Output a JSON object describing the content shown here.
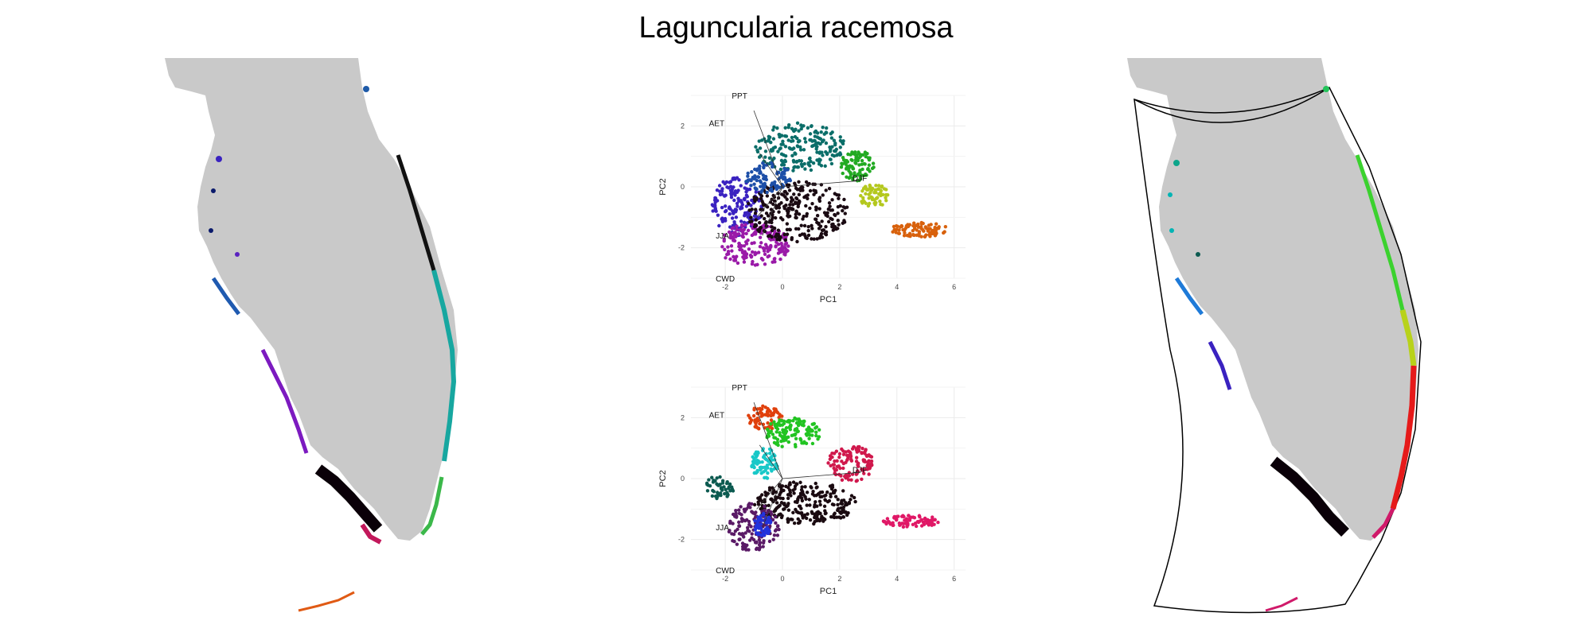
{
  "title": "Laguncularia racemosa",
  "colors": {
    "land": "#c9c9c9",
    "grid": "#ebebeb",
    "outline": "#000000"
  },
  "chart_data": [
    {
      "type": "map",
      "panel": "left-map",
      "description_colors": [
        "#0a1a6b",
        "#1e5aa8",
        "#6a1fc7",
        "#8a1a9a",
        "#000000",
        "#00a3a3",
        "#2fb34a",
        "#e85d10",
        "#c2185b"
      ]
    },
    {
      "type": "scatter",
      "panel": "pca-top",
      "xlabel": "PC1",
      "ylabel": "PC2",
      "x_ticks": [
        -2,
        0,
        2,
        4,
        6
      ],
      "y_ticks": [
        2,
        0,
        -2
      ],
      "xlim": [
        -3.2,
        6.4
      ],
      "ylim": [
        -3.0,
        3.0
      ],
      "grid": true,
      "loadings": [
        {
          "name": "PPT",
          "end": [
            -1.0,
            2.5
          ],
          "label": [
            -1.5,
            2.9
          ]
        },
        {
          "name": "AET",
          "end": [
            -0.8,
            1.1
          ],
          "label": [
            -2.3,
            2.0
          ]
        },
        {
          "name": "DJF",
          "end": [
            2.7,
            0.2
          ],
          "label": [
            2.7,
            0.2
          ]
        },
        {
          "name": "JJA",
          "end": [
            -0.9,
            -1.0
          ],
          "label": [
            -2.1,
            -1.7
          ]
        },
        {
          "name": "CWD",
          "end": [
            -0.7,
            -1.6
          ],
          "label": [
            -2.0,
            -3.1
          ]
        }
      ],
      "groups": [
        {
          "cx": -1.6,
          "cy": -0.6,
          "rx": 0.9,
          "ry": 1.0,
          "color": "#3a22c0",
          "n": 160
        },
        {
          "cx": -1.0,
          "cy": -1.9,
          "rx": 1.3,
          "ry": 0.7,
          "color": "#9a1aa8",
          "n": 190
        },
        {
          "cx": 0.5,
          "cy": -0.8,
          "rx": 1.8,
          "ry": 1.0,
          "color": "#1a0a12",
          "n": 280
        },
        {
          "cx": 0.6,
          "cy": 1.3,
          "rx": 1.6,
          "ry": 0.8,
          "color": "#0b6e69",
          "n": 200
        },
        {
          "cx": -0.5,
          "cy": 0.3,
          "rx": 0.8,
          "ry": 0.5,
          "color": "#1d4fa8",
          "n": 90
        },
        {
          "cx": 2.6,
          "cy": 0.7,
          "rx": 0.6,
          "ry": 0.5,
          "color": "#22aa22",
          "n": 90
        },
        {
          "cx": 3.2,
          "cy": -0.3,
          "rx": 0.5,
          "ry": 0.4,
          "color": "#b4c81e",
          "n": 60
        },
        {
          "cx": 4.8,
          "cy": -1.4,
          "rx": 1.0,
          "ry": 0.25,
          "color": "#d8610c",
          "n": 90
        }
      ]
    },
    {
      "type": "scatter",
      "panel": "pca-bottom",
      "xlabel": "PC1",
      "ylabel": "PC2",
      "x_ticks": [
        -2,
        0,
        2,
        4,
        6
      ],
      "y_ticks": [
        2,
        0,
        -2
      ],
      "xlim": [
        -3.2,
        6.4
      ],
      "ylim": [
        -3.0,
        3.0
      ],
      "grid": true,
      "loadings": [
        {
          "name": "PPT",
          "end": [
            -1.0,
            2.5
          ],
          "label": [
            -1.5,
            2.9
          ]
        },
        {
          "name": "AET",
          "end": [
            -0.8,
            1.1
          ],
          "label": [
            -2.3,
            2.0
          ]
        },
        {
          "name": "DJF",
          "end": [
            2.7,
            0.2
          ],
          "label": [
            2.7,
            0.2
          ]
        },
        {
          "name": "JJA",
          "end": [
            -0.9,
            -1.0
          ],
          "label": [
            -2.1,
            -1.7
          ]
        },
        {
          "name": "CWD",
          "end": [
            -0.7,
            -1.6
          ],
          "label": [
            -2.0,
            -3.1
          ]
        }
      ],
      "groups": [
        {
          "cx": -0.6,
          "cy": 2.0,
          "rx": 0.6,
          "ry": 0.4,
          "color": "#e0400c",
          "n": 70
        },
        {
          "cx": 0.4,
          "cy": 1.5,
          "rx": 1.0,
          "ry": 0.5,
          "color": "#22c422",
          "n": 130
        },
        {
          "cx": -0.6,
          "cy": 0.5,
          "rx": 0.5,
          "ry": 0.5,
          "color": "#18c8c8",
          "n": 80
        },
        {
          "cx": -2.2,
          "cy": -0.3,
          "rx": 0.5,
          "ry": 0.4,
          "color": "#0c5a50",
          "n": 50
        },
        {
          "cx": 0.8,
          "cy": -0.8,
          "rx": 1.8,
          "ry": 0.7,
          "color": "#1a0a10",
          "n": 260
        },
        {
          "cx": -1.0,
          "cy": -1.6,
          "rx": 0.9,
          "ry": 0.8,
          "color": "#5a1a66",
          "n": 150
        },
        {
          "cx": -0.7,
          "cy": -1.5,
          "rx": 0.3,
          "ry": 0.4,
          "color": "#2233dd",
          "n": 50
        },
        {
          "cx": 2.4,
          "cy": 0.5,
          "rx": 0.8,
          "ry": 0.6,
          "color": "#d0184c",
          "n": 120
        },
        {
          "cx": 4.5,
          "cy": -1.4,
          "rx": 1.0,
          "ry": 0.2,
          "color": "#e01866",
          "n": 80
        }
      ]
    },
    {
      "type": "map",
      "panel": "right-map",
      "description_colors": [
        "#00b4b4",
        "#1e7ad8",
        "#3a22c0",
        "#000000",
        "#a0d81e",
        "#ee2222",
        "#d01a6a",
        "#22c422"
      ]
    }
  ]
}
